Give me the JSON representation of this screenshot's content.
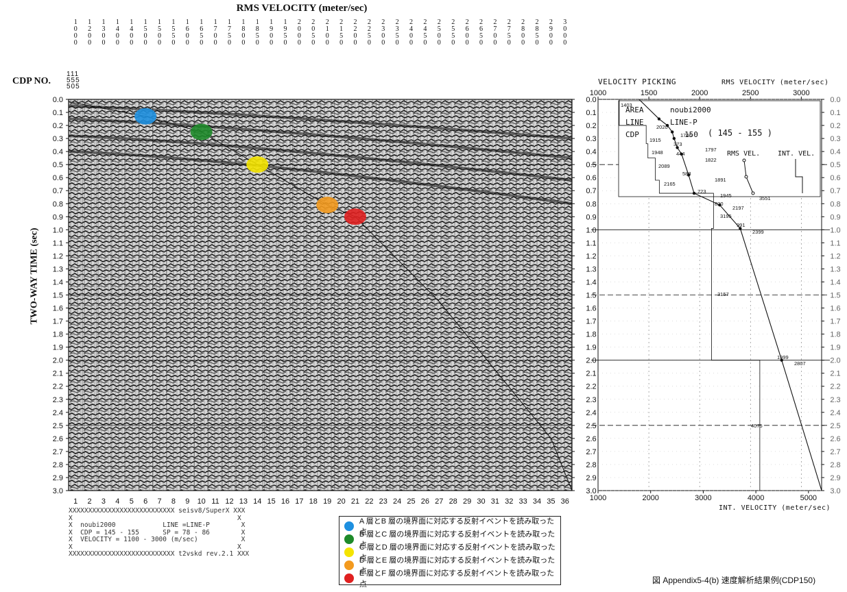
{
  "chart_data": [
    {
      "type": "heatmap",
      "title": "RMS VELOCITY (meter/sec)",
      "x_top_labels": [
        "1000",
        "1200",
        "1300",
        "1400",
        "1400",
        "1500",
        "1500",
        "1550",
        "1600",
        "1650",
        "1700",
        "1750",
        "1800",
        "1850",
        "1900",
        "1950",
        "2000",
        "2050",
        "2100",
        "2150",
        "2200",
        "2250",
        "2300",
        "2350",
        "2400",
        "2450",
        "2500",
        "2550",
        "2600",
        "2650",
        "2700",
        "2750",
        "2800",
        "2850",
        "2900",
        "3000"
      ],
      "ylabel": "TWO-WAY TIME (sec)",
      "cdp_label": "CDP NO.",
      "cdp_range_top": "111\n555\n505",
      "y_ticks": [
        "0.0",
        "0.1",
        "0.2",
        "0.3",
        "0.4",
        "0.5",
        "0.6",
        "0.7",
        "0.8",
        "0.9",
        "1.0",
        "1.1",
        "1.2",
        "1.3",
        "1.4",
        "1.5",
        "1.6",
        "1.7",
        "1.8",
        "1.9",
        "2.0",
        "2.1",
        "2.2",
        "2.3",
        "2.4",
        "2.5",
        "2.6",
        "2.7",
        "2.8",
        "2.9",
        "3.0"
      ],
      "x_bottom_ticks": [
        "1",
        "2",
        "3",
        "4",
        "5",
        "6",
        "7",
        "8",
        "9",
        "10",
        "11",
        "12",
        "13",
        "14",
        "15",
        "16",
        "17",
        "18",
        "19",
        "20",
        "21",
        "22",
        "23",
        "24",
        "25",
        "26",
        "27",
        "28",
        "29",
        "30",
        "31",
        "32",
        "33",
        "34",
        "35",
        "36"
      ],
      "ylim": [
        0,
        3.0
      ],
      "picked_points": [
        {
          "panel": 6,
          "time": 0.13,
          "color": "#1e90e0",
          "layer": "A"
        },
        {
          "panel": 10,
          "time": 0.25,
          "color": "#1e8a2a",
          "layer": "B"
        },
        {
          "panel": 14,
          "time": 0.5,
          "color": "#f4e400",
          "layer": "C"
        },
        {
          "panel": 19,
          "time": 0.81,
          "color": "#f39a1e",
          "layer": "D"
        },
        {
          "panel": 21,
          "time": 0.9,
          "color": "#e02020",
          "layer": "E"
        }
      ]
    },
    {
      "type": "line",
      "title": "VELOCITY PICKING",
      "top_axis_label": "RMS VELOCITY (meter/sec)",
      "bottom_axis_label": "INT. VELOCITY (meter/sec)",
      "top_ticks": [
        "1000",
        "1500",
        "2000",
        "2500",
        "3000"
      ],
      "bottom_ticks": [
        "1000",
        "2000",
        "3000",
        "4000",
        "5000"
      ],
      "xlim": [
        1000,
        3200
      ],
      "ylim": [
        0,
        3.0
      ],
      "rms_series": {
        "time": [
          0.0,
          0.15,
          0.2,
          0.25,
          0.3,
          0.37,
          0.42,
          0.58,
          0.72,
          0.81,
          0.99,
          2.0,
          3.0
        ],
        "velocity": [
          1403,
          1600,
          1682,
          1730,
          1748,
          1780,
          1822,
          1891,
          1945,
          2197,
          2399,
          2807,
          3200
        ]
      },
      "rms_labels": [
        "1403",
        "1746",
        "1797",
        "1822",
        "1891",
        "1945",
        "2197",
        "2399",
        "2807"
      ],
      "time_labels": [
        "723",
        "820",
        "991",
        "1999",
        "373",
        "444",
        "588"
      ],
      "int_labels": [
        "1915",
        "1948",
        "2089",
        "2165",
        "3551",
        "3195",
        "3157",
        "4075",
        "2020"
      ],
      "info_box": {
        "area_label": "AREA",
        "area_value": "noubi2000",
        "line_label": "LINE",
        "line_value": "LINE-P",
        "cdp_label": "CDP",
        "cdp_value": "150",
        "cdp_range": "( 145 - 155 )",
        "rms_vel": "RMS VEL.",
        "int_vel": "INT. VEL."
      }
    }
  ],
  "info_lines": [
    "XXXXXXXXXXXXXXXXXXXXXXXXXXX seisv8/SuperX XXX",
    "X                                          X",
    "X  noubi2000            LINE =LINE-P        X",
    "X  CDP = 145 - 155      SP = 78 - 86        X",
    "X  VELOCITY = 1100 - 3000 (m/sec)           X",
    "X                                          X",
    "XXXXXXXXXXXXXXXXXXXXXXXXXXX t2vskd rev.2.1 XXX"
  ],
  "legend": {
    "items": [
      {
        "color": "#1e90e0",
        "label": "A 層とB 層の境界面に対応する反射イベントを読み取った点"
      },
      {
        "color": "#1e8a2a",
        "label": "B 層とC 層の境界面に対応する反射イベントを読み取った点"
      },
      {
        "color": "#f4e400",
        "label": "C 層とD 層の境界面に対応する反射イベントを読み取った点"
      },
      {
        "color": "#f39a1e",
        "label": "D 層とE 層の境界面に対応する反射イベントを読み取った点"
      },
      {
        "color": "#e02020",
        "label": "E 層とF 層の境界面に対応する反射イベントを読み取った点"
      }
    ]
  },
  "caption": "図 Appendix5-4(b) 速度解析結果例(CDP150)"
}
